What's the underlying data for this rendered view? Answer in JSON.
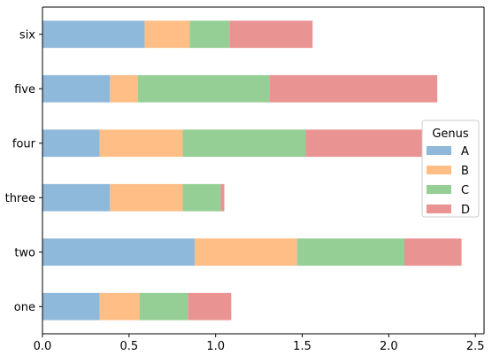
{
  "chart_data": {
    "type": "bar",
    "orientation": "horizontal",
    "stacked": true,
    "categories": [
      "one",
      "two",
      "three",
      "four",
      "five",
      "six"
    ],
    "series": [
      {
        "name": "A",
        "values": [
          0.33,
          0.88,
          0.39,
          0.33,
          0.39,
          0.59
        ]
      },
      {
        "name": "B",
        "values": [
          0.23,
          0.59,
          0.42,
          0.48,
          0.16,
          0.26
        ]
      },
      {
        "name": "C",
        "values": [
          0.28,
          0.62,
          0.22,
          0.71,
          0.76,
          0.23
        ]
      },
      {
        "name": "D",
        "values": [
          0.25,
          0.33,
          0.02,
          0.67,
          0.97,
          0.48
        ]
      }
    ],
    "colors": [
      "#8fb9db",
      "#ffbe86",
      "#95cf95",
      "#ea9393"
    ],
    "xlim": [
      0,
      2.55
    ],
    "xticks": [
      "0.0",
      "0.5",
      "1.0",
      "1.5",
      "2.0",
      "2.5"
    ],
    "xtick_values": [
      0.0,
      0.5,
      1.0,
      1.5,
      2.0,
      2.5
    ],
    "grid": false,
    "legend": {
      "title": "Genus",
      "placement": "center-right"
    },
    "title": "",
    "xlabel": "",
    "ylabel": ""
  }
}
